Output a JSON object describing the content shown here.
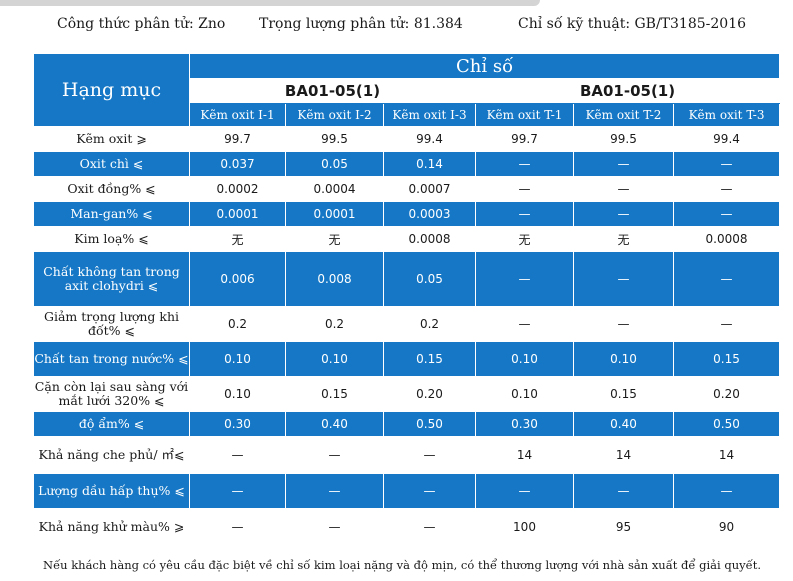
{
  "header": {
    "formula": "Công thức phân tử: Zno",
    "weight": "Trọng lượng phân tử:  81.384",
    "standard": "Chỉ số kỹ thuật:  GB/T3185-2016"
  },
  "table": {
    "item_header": "Hạng mục",
    "index_header": "Chỉ số",
    "groups": [
      "BA01-05(1)",
      "BA01-05(1)"
    ],
    "columns": [
      "Kẽm oxit I-1",
      "Kẽm oxit I-2",
      "Kẽm oxit I-3",
      "Kẽm oxit T-1",
      "Kẽm oxit T-2",
      "Kẽm oxit T-3"
    ],
    "rows": [
      {
        "label": "Kẽm oxit ⩾",
        "values": [
          "99.7",
          "99.5",
          "99.4",
          "99.7",
          "99.5",
          "99.4"
        ]
      },
      {
        "label": "Oxit chì ⩽",
        "values": [
          "0.037",
          "0.05",
          "0.14",
          "—",
          "—",
          "—"
        ]
      },
      {
        "label": "Oxit đồng% ⩽",
        "values": [
          "0.0002",
          "0.0004",
          "0.0007",
          "—",
          "—",
          "—"
        ]
      },
      {
        "label": "Man-gan% ⩽",
        "values": [
          "0.0001",
          "0.0001",
          "0.0003",
          "—",
          "—",
          "—"
        ]
      },
      {
        "label": "Kim loạ% ⩽",
        "values": [
          "无",
          "无",
          "0.0008",
          "无",
          "无",
          "0.0008"
        ]
      },
      {
        "label": "Chất không tan trong axit clohydri ⩽",
        "values": [
          "0.006",
          "0.008",
          "0.05",
          "—",
          "—",
          "—"
        ]
      },
      {
        "label": "Giảm trọng lượng khi đốt% ⩽",
        "values": [
          "0.2",
          "0.2",
          "0.2",
          "—",
          "—",
          "—"
        ]
      },
      {
        "label": "Chất tan trong nước% ⩽",
        "values": [
          "0.10",
          "0.10",
          "0.15",
          "0.10",
          "0.10",
          "0.15"
        ]
      },
      {
        "label": "Cặn còn lại sau sàng với mắt lưới 320% ⩽",
        "values": [
          "0.10",
          "0.15",
          "0.20",
          "0.10",
          "0.15",
          "0.20"
        ]
      },
      {
        "label": "độ ẩm% ⩽",
        "values": [
          "0.30",
          "0.40",
          "0.50",
          "0.30",
          "0.40",
          "0.50"
        ]
      },
      {
        "label": "Khả năng che phủ/ ㎡⩽",
        "values": [
          "—",
          "—",
          "—",
          "14",
          "14",
          "14"
        ]
      },
      {
        "label": "Lượng dầu hấp thụ% ⩽",
        "values": [
          "—",
          "—",
          "—",
          "—",
          "—",
          "—"
        ]
      },
      {
        "label": "Khả năng khử màu% ⩾",
        "values": [
          "—",
          "—",
          "—",
          "100",
          "95",
          "90"
        ]
      }
    ]
  },
  "footnote": "Nếu khách hàng có yêu cầu đặc biệt về chỉ số kim loại nặng và độ mịn, có thể thương lượng với nhà sản xuất để giải quyết."
}
